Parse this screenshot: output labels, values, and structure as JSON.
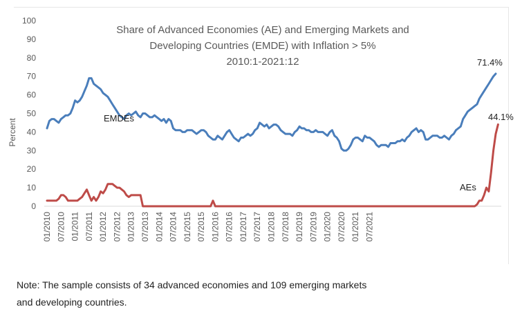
{
  "chart_data": {
    "type": "line",
    "title": [
      "Share of Advanced Economies (AE) and Emerging Markets and",
      "Developing Countries (EMDE) with Inflation > 5%",
      "2010:1-2021:12"
    ],
    "xlabel": "",
    "ylabel": "Percent",
    "ylim": [
      0,
      100
    ],
    "yticks": [
      0,
      10,
      20,
      30,
      40,
      50,
      60,
      70,
      80,
      90,
      100
    ],
    "xticks": [
      "01/2010",
      "07/2010",
      "01/2011",
      "07/2011",
      "01/2012",
      "07/2012",
      "01/2013",
      "07/2013",
      "01/2014",
      "07/2014",
      "01/2015",
      "07/2015",
      "01/2016",
      "07/2016",
      "01/2017",
      "07/2017",
      "01/2018",
      "07/2018",
      "01/2019",
      "07/2019",
      "01/2020",
      "07/2020",
      "01/2021",
      "07/2021"
    ],
    "x_start": "2010-01",
    "x_end": "2021-12",
    "grid": false,
    "legend": "none",
    "series": [
      {
        "name": "EMDEs",
        "color": "#4a7ebb",
        "values": [
          42,
          46,
          47,
          47,
          46,
          45,
          47,
          48,
          49,
          49,
          50,
          53,
          57,
          56,
          57,
          59,
          62,
          65,
          69,
          69,
          66,
          65,
          64,
          63,
          61,
          60,
          59,
          57,
          55,
          53,
          51,
          49,
          48,
          47,
          49,
          50,
          49,
          50,
          51,
          49,
          48,
          50,
          50,
          49,
          48,
          48,
          49,
          48,
          47,
          46,
          47,
          45,
          47,
          46,
          42,
          41,
          41,
          41,
          40,
          40,
          41,
          41,
          41,
          40,
          39,
          40,
          41,
          41,
          40,
          38,
          37,
          36,
          36,
          38,
          37,
          36,
          38,
          40,
          41,
          39,
          37,
          36,
          35,
          37,
          37,
          38,
          39,
          38,
          39,
          41,
          42,
          45,
          44,
          43,
          44,
          42,
          43,
          44,
          44,
          43,
          41,
          40,
          39,
          39,
          39,
          38,
          40,
          41,
          43,
          42,
          42,
          41,
          41,
          40,
          40,
          41,
          40,
          40,
          40,
          39,
          38,
          40,
          41,
          38,
          37,
          35,
          31,
          30,
          30,
          31,
          33,
          36,
          37,
          37,
          36,
          35,
          38,
          37,
          37,
          36,
          35,
          33,
          32,
          33,
          33,
          33,
          32,
          34,
          34,
          34,
          35,
          35,
          36,
          35,
          37,
          38,
          40,
          41,
          42,
          40,
          41,
          40,
          36,
          36,
          37,
          38,
          38,
          38,
          37,
          37,
          38,
          37,
          36,
          38,
          39,
          41,
          42,
          43,
          47,
          49,
          51,
          52,
          53,
          54,
          55,
          58,
          60,
          62,
          64,
          66,
          68,
          70,
          71.4
        ],
        "end_label": "71.4%",
        "series_label": "EMDEs"
      },
      {
        "name": "AEs",
        "color": "#be4b48",
        "values": [
          3,
          3,
          3,
          3,
          3,
          4,
          6,
          6,
          5,
          3,
          3,
          3,
          3,
          3,
          4,
          5,
          7,
          9,
          6,
          3,
          5,
          3,
          5,
          8,
          7,
          9,
          12,
          12,
          12,
          11,
          10,
          10,
          9,
          8,
          6,
          5,
          6,
          6,
          6,
          6,
          6,
          0,
          0,
          0,
          0,
          0,
          0,
          0,
          0,
          0,
          0,
          0,
          0,
          0,
          0,
          0,
          0,
          0,
          0,
          0,
          0,
          0,
          0,
          0,
          0,
          0,
          0,
          0,
          0,
          0,
          0,
          3,
          0,
          0,
          0,
          0,
          0,
          0,
          0,
          0,
          0,
          0,
          0,
          0,
          0,
          0,
          0,
          0,
          0,
          0,
          0,
          0,
          0,
          0,
          0,
          0,
          0,
          0,
          0,
          0,
          0,
          0,
          0,
          0,
          0,
          0,
          0,
          0,
          0,
          0,
          0,
          0,
          0,
          0,
          0,
          0,
          0,
          0,
          0,
          0,
          0,
          0,
          0,
          0,
          0,
          0,
          0,
          0,
          0,
          0,
          0,
          0,
          0,
          0,
          0,
          0,
          0,
          0,
          0,
          0,
          0,
          0,
          0,
          0,
          0,
          0,
          0,
          0,
          0,
          0,
          0,
          0,
          0,
          0,
          0,
          0,
          0,
          0,
          0,
          0,
          0,
          0,
          0,
          0,
          0,
          0,
          0,
          0,
          0,
          0,
          0,
          0,
          0,
          0,
          0,
          0,
          0,
          0,
          0,
          0,
          0,
          0,
          0,
          0,
          1,
          3,
          3,
          6,
          10,
          8,
          18,
          30,
          39,
          44.1
        ],
        "end_label": "44.1%",
        "series_label": "AEs"
      }
    ]
  },
  "note": {
    "line1": "Note: The sample consists of 34 advanced economies and 109 emerging markets",
    "line2": "and developing countries."
  }
}
